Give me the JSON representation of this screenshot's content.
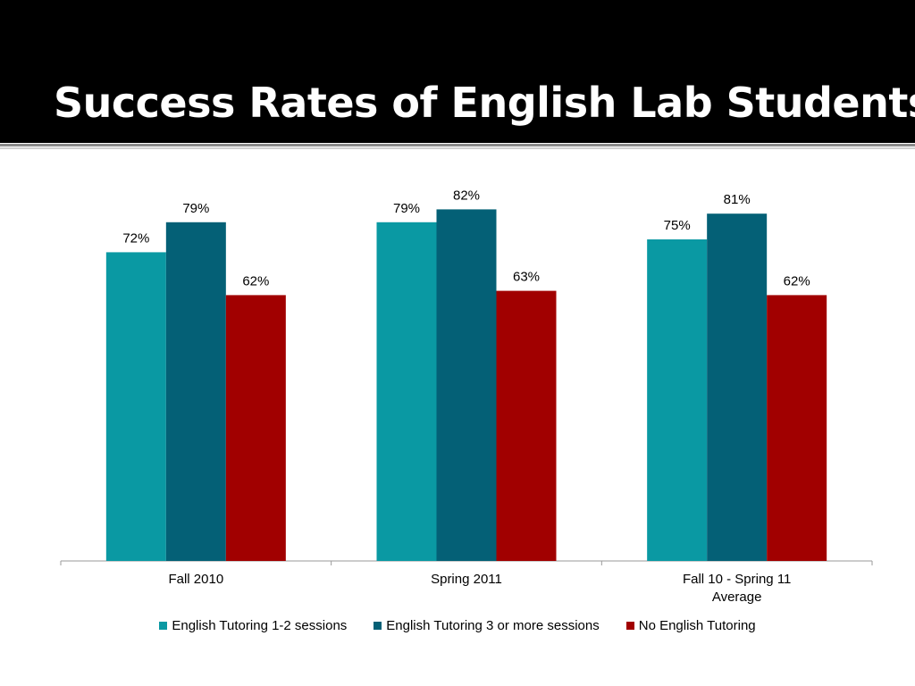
{
  "slide": {
    "title": "Success Rates of English Lab Students"
  },
  "chart_data": {
    "type": "bar",
    "categories": [
      [
        "Fall 2010"
      ],
      [
        "Spring 2011"
      ],
      [
        "Fall 10 - Spring 11",
        "Average"
      ]
    ],
    "series": [
      {
        "name": "English Tutoring 1-2 sessions",
        "values": [
          72,
          79,
          75
        ],
        "labels": [
          "72%",
          "79%",
          "75%"
        ],
        "color": "#0a99a3"
      },
      {
        "name": "English Tutoring 3 or more sessions",
        "values": [
          79,
          82,
          81
        ],
        "labels": [
          "79%",
          "82%",
          "81%"
        ],
        "color": "#046076"
      },
      {
        "name": "No English Tutoring",
        "values": [
          62,
          63,
          62
        ],
        "labels": [
          "62%",
          "63%",
          "62%"
        ],
        "color": "#a10000"
      }
    ],
    "ylim": [
      0,
      100
    ],
    "grid": false,
    "legend_position": "bottom"
  }
}
